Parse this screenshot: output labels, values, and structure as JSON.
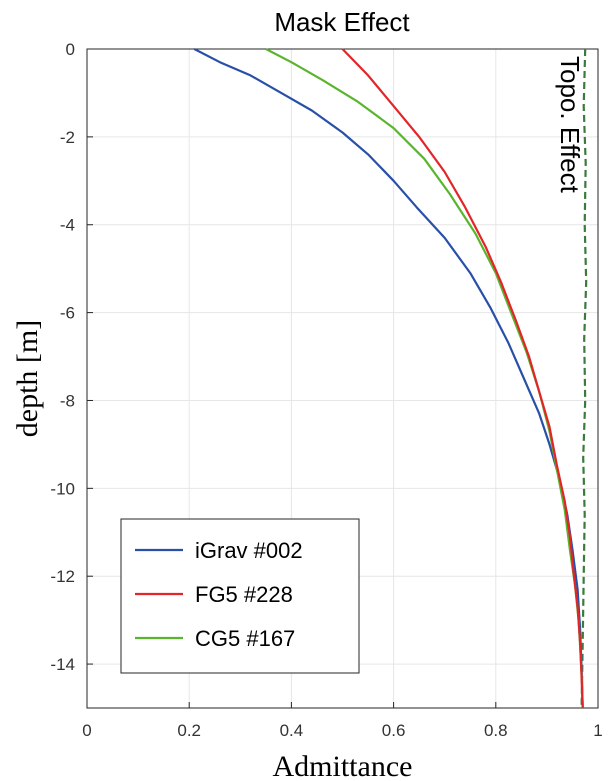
{
  "chart_data": {
    "type": "line",
    "title": "Mask Effect",
    "xlabel": "Admittance",
    "ylabel": "depth [m]",
    "xlim": [
      0,
      1
    ],
    "ylim": [
      -15,
      0
    ],
    "xticks": [
      "0",
      "0.2",
      "0.4",
      "0.6",
      "0.8",
      "1"
    ],
    "yticks": [
      "0",
      "-2",
      "-4",
      "-6",
      "-8",
      "-10",
      "-12",
      "-14"
    ],
    "grid": true,
    "legend_position": "bottom-left",
    "annotations": [
      {
        "text": "Topo. Effect"
      }
    ],
    "series": [
      {
        "name": "iGrav #002",
        "color": "#2850a8",
        "x": [
          0.21,
          0.26,
          0.32,
          0.38,
          0.44,
          0.5,
          0.55,
          0.6,
          0.645,
          0.7,
          0.75,
          0.79,
          0.825,
          0.855,
          0.885,
          0.905,
          0.925,
          0.94,
          0.95,
          0.96,
          0.965,
          0.968,
          0.97
        ],
        "y": [
          0,
          -0.3,
          -0.6,
          -1.0,
          -1.4,
          -1.9,
          -2.4,
          -3.0,
          -3.6,
          -4.3,
          -5.1,
          -5.9,
          -6.7,
          -7.5,
          -8.3,
          -9.0,
          -9.8,
          -10.6,
          -11.4,
          -12.3,
          -13.2,
          -14.1,
          -15
        ]
      },
      {
        "name": "FG5 #228",
        "color": "#e32528",
        "x": [
          0.5,
          0.55,
          0.6,
          0.65,
          0.7,
          0.74,
          0.78,
          0.81,
          0.84,
          0.865,
          0.885,
          0.905,
          0.92,
          0.935,
          0.945,
          0.952,
          0.96,
          0.965,
          0.968,
          0.97
        ],
        "y": [
          0,
          -0.6,
          -1.3,
          -2.0,
          -2.8,
          -3.6,
          -4.5,
          -5.3,
          -6.2,
          -7.0,
          -7.8,
          -8.6,
          -9.5,
          -10.3,
          -11.1,
          -11.9,
          -12.7,
          -13.5,
          -14.3,
          -15
        ]
      },
      {
        "name": "CG5 #167",
        "color": "#5ab52e",
        "x": [
          0.35,
          0.4,
          0.46,
          0.53,
          0.6,
          0.66,
          0.71,
          0.76,
          0.8,
          0.83,
          0.86,
          0.885,
          0.905,
          0.92,
          0.935,
          0.945,
          0.955,
          0.962,
          0.966,
          0.969,
          0.97
        ],
        "y": [
          0,
          -0.3,
          -0.7,
          -1.2,
          -1.8,
          -2.5,
          -3.3,
          -4.2,
          -5.1,
          -6.0,
          -6.9,
          -7.8,
          -8.7,
          -9.6,
          -10.5,
          -11.4,
          -12.2,
          -13.0,
          -13.8,
          -14.5,
          -15
        ]
      },
      {
        "name": "",
        "color": "#3a7a3a",
        "x": [
          0.975,
          0.972,
          0.976,
          0.974,
          0.977,
          0.973,
          0.975,
          0.971,
          0.974,
          0.972,
          0.97,
          0.968
        ],
        "y": [
          0,
          -1.3,
          -2.6,
          -4.0,
          -5.3,
          -6.6,
          -8.0,
          -9.3,
          -10.6,
          -12.0,
          -13.5,
          -15
        ]
      }
    ]
  }
}
